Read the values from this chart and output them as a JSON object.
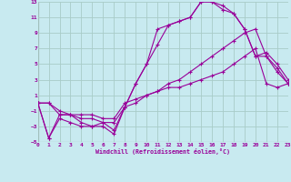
{
  "bg_color": "#c8eaf0",
  "grid_color": "#a8ccc8",
  "line_color": "#990099",
  "xlabel": "Windchill (Refroidissement éolien,°C)",
  "xlim": [
    0,
    23
  ],
  "ylim": [
    -5,
    13
  ],
  "xticks": [
    0,
    1,
    2,
    3,
    4,
    5,
    6,
    7,
    8,
    9,
    10,
    11,
    12,
    13,
    14,
    15,
    16,
    17,
    18,
    19,
    20,
    21,
    22,
    23
  ],
  "yticks": [
    -5,
    -3,
    -1,
    1,
    3,
    5,
    7,
    9,
    11,
    13
  ],
  "line1": {
    "x": [
      0,
      1,
      2,
      3,
      4,
      5,
      6,
      7,
      8,
      9,
      10,
      11,
      12,
      13,
      14,
      15,
      16,
      17,
      18,
      19,
      20,
      21,
      22,
      23
    ],
    "y": [
      0,
      -4.5,
      -2.0,
      -2.5,
      -3.0,
      -3.0,
      -3.0,
      -4.0,
      -0.5,
      2.5,
      5.0,
      7.5,
      10.0,
      10.5,
      11.0,
      13.0,
      13.0,
      12.5,
      11.5,
      9.5,
      6.0,
      6.5,
      5.0,
      3.0
    ]
  },
  "line2": {
    "x": [
      0,
      1,
      2,
      3,
      4,
      5,
      6,
      7,
      8,
      9,
      10,
      11,
      12,
      13,
      14,
      15,
      16,
      17,
      18,
      19,
      20,
      21,
      22,
      23
    ],
    "y": [
      0,
      -4.5,
      -1.5,
      -1.5,
      -2.5,
      -3.0,
      -2.5,
      -3.5,
      -0.5,
      2.5,
      5.0,
      9.5,
      10.0,
      10.5,
      11.0,
      13.0,
      13.0,
      12.0,
      11.5,
      9.5,
      6.0,
      6.0,
      4.5,
      2.5
    ]
  },
  "line3": {
    "x": [
      0,
      1,
      2,
      3,
      4,
      5,
      6,
      7,
      8,
      9,
      10,
      11,
      12,
      13,
      14,
      15,
      16,
      17,
      18,
      19,
      20,
      21,
      22,
      23
    ],
    "y": [
      0,
      0,
      -1.5,
      -1.5,
      -2.0,
      -2.0,
      -2.5,
      -2.5,
      -0.5,
      0.0,
      1.0,
      1.5,
      2.5,
      3.0,
      4.0,
      5.0,
      6.0,
      7.0,
      8.0,
      9.0,
      9.5,
      6.0,
      4.0,
      2.5
    ]
  },
  "line4": {
    "x": [
      0,
      1,
      2,
      3,
      4,
      5,
      6,
      7,
      8,
      9,
      10,
      11,
      12,
      13,
      14,
      15,
      16,
      17,
      18,
      19,
      20,
      21,
      22,
      23
    ],
    "y": [
      0,
      0,
      -1.0,
      -1.5,
      -1.5,
      -1.5,
      -2.0,
      -2.0,
      0.0,
      0.5,
      1.0,
      1.5,
      2.0,
      2.0,
      2.5,
      3.0,
      3.5,
      4.0,
      5.0,
      6.0,
      7.0,
      2.5,
      2.0,
      2.5
    ]
  }
}
